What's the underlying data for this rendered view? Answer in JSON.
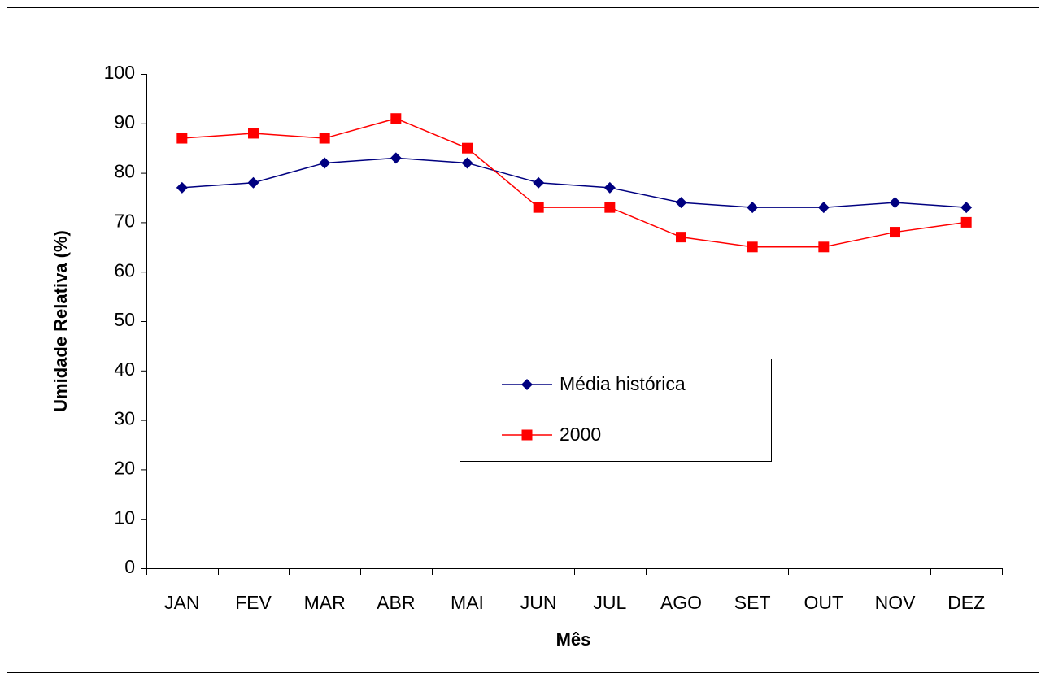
{
  "chart_data": {
    "type": "line",
    "x_label": "Mês",
    "y_label": "Umidade Relativa (%)",
    "categories": [
      "JAN",
      "FEV",
      "MAR",
      "ABR",
      "MAI",
      "JUN",
      "JUL",
      "AGO",
      "SET",
      "OUT",
      "NOV",
      "DEZ"
    ],
    "series": [
      {
        "name": "Média histórica",
        "color": "#000080",
        "marker": "diamond",
        "values": [
          77,
          78,
          82,
          83,
          82,
          78,
          77,
          74,
          73,
          73,
          74,
          73
        ]
      },
      {
        "name": "2000",
        "color": "#ff0000",
        "marker": "square",
        "values": [
          87,
          88,
          87,
          91,
          85,
          73,
          73,
          67,
          65,
          65,
          68,
          70
        ]
      }
    ],
    "ylim": [
      0,
      100
    ],
    "yticks": [
      0,
      10,
      20,
      30,
      40,
      50,
      60,
      70,
      80,
      90,
      100
    ],
    "grid": false
  }
}
